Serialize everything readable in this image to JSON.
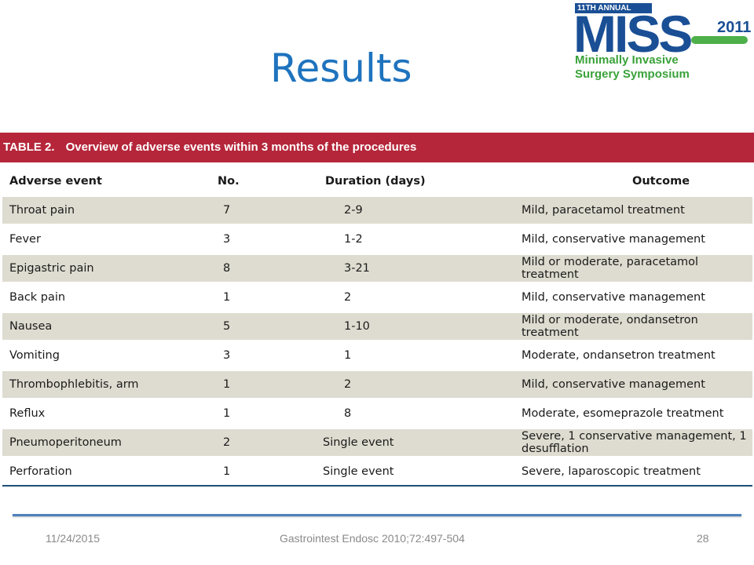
{
  "slide": {
    "title": "Results",
    "footer": {
      "date": "11/24/2015",
      "source": "Gastrointest Endosc 2010;72:497-504",
      "page": "28"
    }
  },
  "logo": {
    "annual": "11TH ANNUAL",
    "name": "MISS",
    "year": "2011",
    "subtitle_line1": "Minimally Invasive",
    "subtitle_line2": "Surgery Symposium",
    "colors": {
      "blue": "#1a4f95",
      "green": "#3aa23a"
    }
  },
  "table": {
    "caption_number": "TABLE 2.",
    "caption_text": "Overview of adverse events within 3 months of the procedures",
    "header_color": "#b5263a",
    "columns": [
      "Adverse event",
      "No.",
      "Duration (days)",
      "Outcome"
    ],
    "rows": [
      [
        "Throat pain",
        "7",
        "2-9",
        "Mild, paracetamol treatment"
      ],
      [
        "Fever",
        "3",
        "1-2",
        "Mild, conservative management"
      ],
      [
        "Epigastric pain",
        "8",
        "3-21",
        "Mild or moderate, paracetamol treatment"
      ],
      [
        "Back pain",
        "1",
        "2",
        "Mild, conservative management"
      ],
      [
        "Nausea",
        "5",
        "1-10",
        "Mild or moderate, ondansetron treatment"
      ],
      [
        "Vomiting",
        "3",
        "1",
        "Moderate, ondansetron treatment"
      ],
      [
        "Thrombophlebitis, arm",
        "1",
        "2",
        "Mild, conservative management"
      ],
      [
        "Reflux",
        "1",
        "8",
        "Moderate, esomeprazole treatment"
      ],
      [
        "Pneumoperitoneum",
        "2",
        "Single event",
        "Severe, 1 conservative management, 1 desufflation"
      ],
      [
        "Perforation",
        "1",
        "Single event",
        "Severe, laparoscopic treatment"
      ]
    ]
  }
}
